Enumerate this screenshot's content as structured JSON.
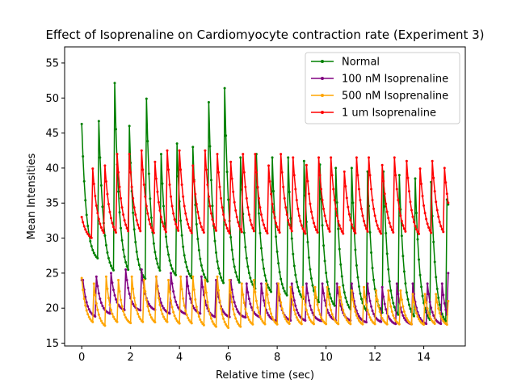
{
  "chart_data": {
    "type": "line",
    "title": "Effect of Isoprenaline on Cardiomyocyte contraction rate (Experiment 3)",
    "xlabel": "Relative time (sec)",
    "ylabel": "Mean Intensities",
    "xlim": [
      -0.7,
      15.7
    ],
    "ylim": [
      14.6,
      57.3
    ],
    "xticks": [
      0,
      2,
      4,
      6,
      8,
      10,
      12,
      14
    ],
    "yticks": [
      15,
      20,
      25,
      30,
      35,
      40,
      45,
      50,
      55
    ],
    "grid": false,
    "legend_position": "top-right",
    "sample_interval": 0.05,
    "x_range": [
      0,
      15
    ],
    "series": [
      {
        "name": "Normal",
        "color": "#008000",
        "decay_rate": 0.75,
        "beats": [
          {
            "t": 0.0,
            "peak": 46.3,
            "base": 26.5
          },
          {
            "t": 0.7,
            "peak": 46.7,
            "base": 24.5
          },
          {
            "t": 1.33,
            "peak": 55.3,
            "base": 24.0
          },
          {
            "t": 1.95,
            "peak": 46.0,
            "base": 23.5
          },
          {
            "t": 2.62,
            "peak": 54.4,
            "base": 24.0
          },
          {
            "t": 3.25,
            "peak": 42.0,
            "base": 24.0
          },
          {
            "t": 3.9,
            "peak": 43.5,
            "base": 23.5
          },
          {
            "t": 4.55,
            "peak": 43.0,
            "base": 23.0
          },
          {
            "t": 5.2,
            "peak": 49.4,
            "base": 22.5
          },
          {
            "t": 5.85,
            "peak": 51.4,
            "base": 22.5
          },
          {
            "t": 6.5,
            "peak": 41.5,
            "base": 22.0
          },
          {
            "t": 7.15,
            "peak": 42.0,
            "base": 21.5
          },
          {
            "t": 7.8,
            "peak": 41.5,
            "base": 21.0
          },
          {
            "t": 8.45,
            "peak": 41.5,
            "base": 20.5
          },
          {
            "t": 9.1,
            "peak": 41.0,
            "base": 20.0
          },
          {
            "t": 9.75,
            "peak": 40.5,
            "base": 19.5
          },
          {
            "t": 10.4,
            "peak": 40.0,
            "base": 19.0
          },
          {
            "t": 11.05,
            "peak": 40.0,
            "base": 18.8
          },
          {
            "t": 11.7,
            "peak": 39.5,
            "base": 18.5
          },
          {
            "t": 12.35,
            "peak": 39.5,
            "base": 18.2
          },
          {
            "t": 13.0,
            "peak": 39.0,
            "base": 18.0
          },
          {
            "t": 13.65,
            "peak": 38.5,
            "base": 17.5
          },
          {
            "t": 14.3,
            "peak": 38.0,
            "base": 17.3
          },
          {
            "t": 14.95,
            "peak": 35.5,
            "base": 32.5
          }
        ]
      },
      {
        "name": "100 nM Isoprenaline",
        "color": "#800080",
        "decay_rate": 0.7,
        "beats": [
          {
            "t": 0.05,
            "peak": 24.0,
            "base": 18.5
          },
          {
            "t": 0.6,
            "peak": 24.5,
            "base": 19.0
          },
          {
            "t": 1.2,
            "peak": 25.0,
            "base": 19.5
          },
          {
            "t": 1.8,
            "peak": 25.5,
            "base": 19.5
          },
          {
            "t": 2.45,
            "peak": 25.5,
            "base": 19.5
          },
          {
            "t": 3.05,
            "peak": 24.5,
            "base": 19.0
          },
          {
            "t": 3.65,
            "peak": 25.0,
            "base": 19.0
          },
          {
            "t": 4.3,
            "peak": 24.5,
            "base": 19.0
          },
          {
            "t": 4.9,
            "peak": 24.5,
            "base": 18.5
          },
          {
            "t": 5.5,
            "peak": 24.0,
            "base": 18.5
          },
          {
            "t": 6.1,
            "peak": 24.0,
            "base": 18.5
          },
          {
            "t": 6.75,
            "peak": 23.5,
            "base": 18.5
          },
          {
            "t": 7.35,
            "peak": 23.5,
            "base": 18.0
          },
          {
            "t": 8.0,
            "peak": 23.5,
            "base": 18.0
          },
          {
            "t": 8.6,
            "peak": 23.5,
            "base": 18.0
          },
          {
            "t": 9.2,
            "peak": 23.5,
            "base": 18.0
          },
          {
            "t": 9.85,
            "peak": 23.5,
            "base": 18.0
          },
          {
            "t": 10.45,
            "peak": 23.5,
            "base": 18.0
          },
          {
            "t": 11.05,
            "peak": 23.5,
            "base": 17.8
          },
          {
            "t": 11.7,
            "peak": 23.5,
            "base": 17.8
          },
          {
            "t": 12.3,
            "peak": 23.0,
            "base": 17.5
          },
          {
            "t": 12.9,
            "peak": 23.5,
            "base": 17.5
          },
          {
            "t": 13.55,
            "peak": 23.5,
            "base": 17.5
          },
          {
            "t": 14.15,
            "peak": 23.5,
            "base": 17.5
          },
          {
            "t": 14.75,
            "peak": 23.5,
            "base": 17.0
          },
          {
            "t": 15.0,
            "peak": 25.0,
            "base": 25.0
          }
        ]
      },
      {
        "name": "500 nM Isoprenaline",
        "color": "#ffa500",
        "decay_rate": 0.7,
        "beats": [
          {
            "t": 0.0,
            "peak": 24.3,
            "base": 17.5
          },
          {
            "t": 0.5,
            "peak": 23.5,
            "base": 17.0
          },
          {
            "t": 1.0,
            "peak": 24.5,
            "base": 17.5
          },
          {
            "t": 1.5,
            "peak": 24.0,
            "base": 17.5
          },
          {
            "t": 2.05,
            "peak": 24.5,
            "base": 17.5
          },
          {
            "t": 2.55,
            "peak": 24.0,
            "base": 17.5
          },
          {
            "t": 3.05,
            "peak": 24.5,
            "base": 17.5
          },
          {
            "t": 3.55,
            "peak": 24.0,
            "base": 17.3
          },
          {
            "t": 4.05,
            "peak": 24.5,
            "base": 17.3
          },
          {
            "t": 4.55,
            "peak": 24.5,
            "base": 17.0
          },
          {
            "t": 5.05,
            "peak": 24.0,
            "base": 16.8
          },
          {
            "t": 5.55,
            "peak": 24.5,
            "base": 16.6
          },
          {
            "t": 6.05,
            "peak": 24.0,
            "base": 16.8
          },
          {
            "t": 6.55,
            "peak": 23.5,
            "base": 17.2
          },
          {
            "t": 7.05,
            "peak": 24.0,
            "base": 17.2
          },
          {
            "t": 7.55,
            "peak": 23.5,
            "base": 17.2
          },
          {
            "t": 8.05,
            "peak": 23.5,
            "base": 17.3
          },
          {
            "t": 8.55,
            "peak": 23.0,
            "base": 17.3
          },
          {
            "t": 9.05,
            "peak": 23.0,
            "base": 17.3
          },
          {
            "t": 9.55,
            "peak": 23.0,
            "base": 17.3
          },
          {
            "t": 10.05,
            "peak": 23.0,
            "base": 17.3
          },
          {
            "t": 10.55,
            "peak": 23.0,
            "base": 17.3
          },
          {
            "t": 11.05,
            "peak": 22.5,
            "base": 17.3
          },
          {
            "t": 11.55,
            "peak": 23.0,
            "base": 17.3
          },
          {
            "t": 12.05,
            "peak": 22.5,
            "base": 17.3
          },
          {
            "t": 12.55,
            "peak": 22.5,
            "base": 17.3
          },
          {
            "t": 13.05,
            "peak": 22.5,
            "base": 17.3
          },
          {
            "t": 13.55,
            "peak": 22.0,
            "base": 17.3
          },
          {
            "t": 14.05,
            "peak": 22.0,
            "base": 17.3
          },
          {
            "t": 14.5,
            "peak": 22.0,
            "base": 17.3
          },
          {
            "t": 15.0,
            "peak": 21.0,
            "base": 17.5
          }
        ]
      },
      {
        "name": "1 um Isoprenaline",
        "color": "#ff0000",
        "decay_rate": 0.85,
        "beats": [
          {
            "t": 0.0,
            "peak": 33.0,
            "base": 29.5
          },
          {
            "t": 0.42,
            "peak": 41.5,
            "base": 29.5
          },
          {
            "t": 0.92,
            "peak": 42.0,
            "base": 29.5
          },
          {
            "t": 1.45,
            "peak": 42.0,
            "base": 29.5
          },
          {
            "t": 1.95,
            "peak": 42.0,
            "base": 29.5
          },
          {
            "t": 2.45,
            "peak": 42.5,
            "base": 29.5
          },
          {
            "t": 2.98,
            "peak": 42.0,
            "base": 29.5
          },
          {
            "t": 3.5,
            "peak": 42.5,
            "base": 29.5
          },
          {
            "t": 4.0,
            "peak": 42.5,
            "base": 29.5
          },
          {
            "t": 4.52,
            "peak": 42.0,
            "base": 29.5
          },
          {
            "t": 5.05,
            "peak": 42.5,
            "base": 29.5
          },
          {
            "t": 5.55,
            "peak": 42.0,
            "base": 29.5
          },
          {
            "t": 6.08,
            "peak": 42.0,
            "base": 29.5
          },
          {
            "t": 6.6,
            "peak": 42.0,
            "base": 29.5
          },
          {
            "t": 7.1,
            "peak": 42.0,
            "base": 29.5
          },
          {
            "t": 7.62,
            "peak": 42.0,
            "base": 29.5
          },
          {
            "t": 8.15,
            "peak": 42.0,
            "base": 29.5
          },
          {
            "t": 8.65,
            "peak": 41.5,
            "base": 29.5
          },
          {
            "t": 9.18,
            "peak": 41.5,
            "base": 29.5
          },
          {
            "t": 9.7,
            "peak": 41.5,
            "base": 29.5
          },
          {
            "t": 10.2,
            "peak": 41.5,
            "base": 29.5
          },
          {
            "t": 10.72,
            "peak": 41.0,
            "base": 29.5
          },
          {
            "t": 11.25,
            "peak": 41.5,
            "base": 29.5
          },
          {
            "t": 11.75,
            "peak": 41.5,
            "base": 29.5
          },
          {
            "t": 12.28,
            "peak": 41.5,
            "base": 29.5
          },
          {
            "t": 12.8,
            "peak": 41.5,
            "base": 29.5
          },
          {
            "t": 13.3,
            "peak": 41.0,
            "base": 29.5
          },
          {
            "t": 13.82,
            "peak": 41.5,
            "base": 29.5
          },
          {
            "t": 14.35,
            "peak": 41.0,
            "base": 29.5
          },
          {
            "t": 14.85,
            "peak": 40.0,
            "base": 30.2
          }
        ]
      }
    ]
  }
}
